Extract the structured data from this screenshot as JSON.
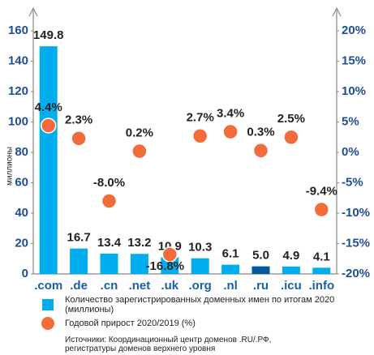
{
  "chart_data": {
    "type": "bar",
    "y_label": "миллионы",
    "categories": [
      ".com",
      ".de",
      ".cn",
      ".net",
      ".uk",
      ".org",
      ".nl",
      ".ru",
      ".icu",
      ".info"
    ],
    "series": [
      {
        "name": "Количество зарегистрированных доменных имен по итогам 2020 (миллионы)",
        "type": "bar",
        "color": "#00aeef",
        "colors": [
          "#00aeef",
          "#00aeef",
          "#00aeef",
          "#00aeef",
          "#00aeef",
          "#00aeef",
          "#00aeef",
          "#005a9c",
          "#00aeef",
          "#00aeef"
        ],
        "values": [
          149.8,
          16.7,
          13.4,
          13.2,
          10.9,
          10.3,
          6.1,
          5.0,
          4.9,
          4.1
        ],
        "value_labels": [
          "149.8",
          "16.7",
          "13.4",
          "13.2",
          "10.9",
          "10.3",
          "6.1",
          "5.0",
          "4.9",
          "4.1"
        ]
      },
      {
        "name": "Годовой прирост 2020/2019 (%)",
        "type": "scatter",
        "axis": "y2",
        "color": "#f26b3a",
        "values": [
          4.4,
          2.3,
          -8.0,
          0.2,
          -16.8,
          2.7,
          3.4,
          0.3,
          2.5,
          -9.4
        ],
        "value_labels": [
          "4.4%",
          "2.3%",
          "-8.0%",
          "0.2%",
          "-16.8%",
          "2.7%",
          "3.4%",
          "0.3%",
          "2.5%",
          "-9.4%"
        ]
      }
    ],
    "ylim": [
      0,
      160
    ],
    "yticks": [
      0,
      20,
      40,
      60,
      80,
      100,
      120,
      140,
      160
    ],
    "y2lim": [
      -20,
      20
    ],
    "y2ticks": [
      {
        "value": -20,
        "label": "-20%"
      },
      {
        "value": -15,
        "label": "-15%"
      },
      {
        "value": -10,
        "label": "-10%"
      },
      {
        "value": -5,
        "label": "-5%"
      },
      {
        "value": 0,
        "label": "0%"
      },
      {
        "value": 5,
        "label": "5%"
      },
      {
        "value": 10,
        "label": "10%"
      },
      {
        "value": 15,
        "label": "15%"
      },
      {
        "value": 20,
        "label": "20%"
      }
    ],
    "source": "Источники: Координационный центр доменов .RU/.РФ, регистратуры доменов верхнего уровня"
  }
}
